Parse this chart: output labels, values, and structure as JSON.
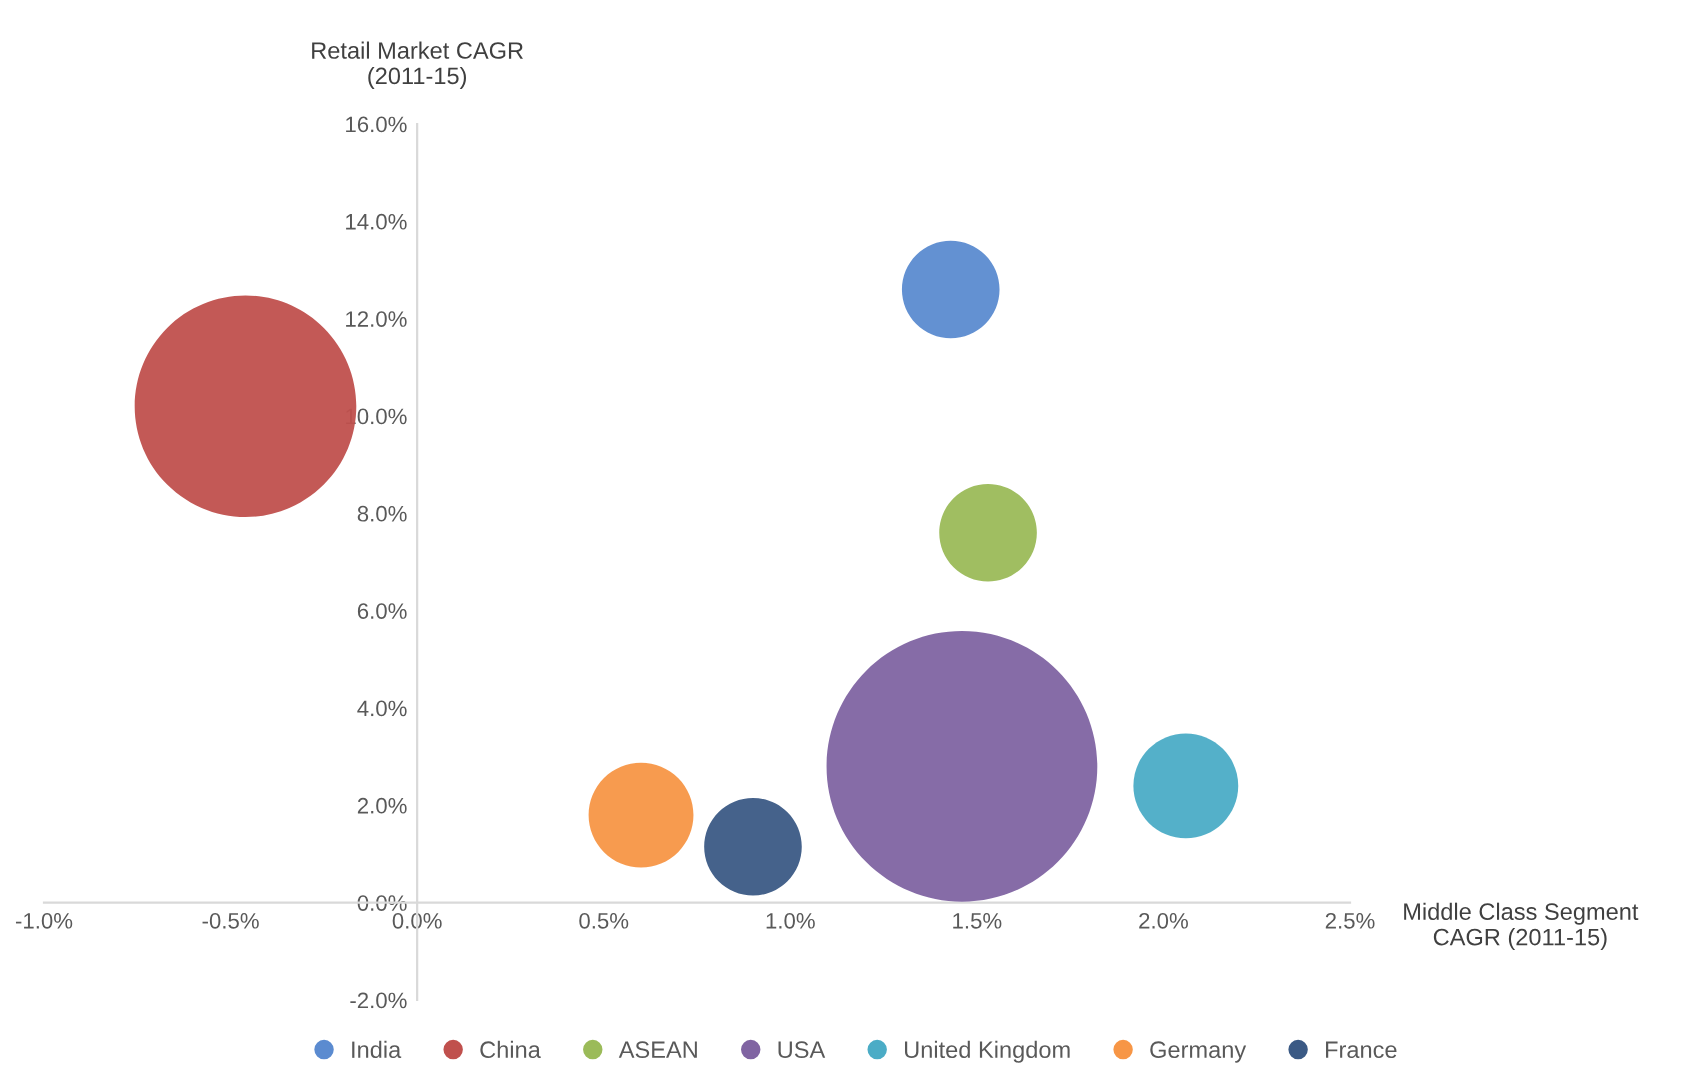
{
  "chart_data": {
    "type": "bubble",
    "xlabel": "Middle Class Segment\nCAGR (2011-15)",
    "ylabel": "Retail Market CAGR\n(2011-15)",
    "xlim": [
      -1.0,
      2.5
    ],
    "ylim": [
      -2.0,
      16.0
    ],
    "xticks": [
      {
        "value": -1.0,
        "label": "-1.0%"
      },
      {
        "value": -0.5,
        "label": "-0.5%"
      },
      {
        "value": 0.0,
        "label": "0.0%"
      },
      {
        "value": 0.5,
        "label": "0.5%"
      },
      {
        "value": 1.0,
        "label": "1.0%"
      },
      {
        "value": 1.5,
        "label": "1.5%"
      },
      {
        "value": 2.0,
        "label": "2.0%"
      },
      {
        "value": 2.5,
        "label": "2.5%"
      }
    ],
    "yticks": [
      {
        "value": -2.0,
        "label": "-2.0%"
      },
      {
        "value": 0.0,
        "label": "0.0%"
      },
      {
        "value": 2.0,
        "label": "2.0%"
      },
      {
        "value": 4.0,
        "label": "4.0%"
      },
      {
        "value": 6.0,
        "label": "6.0%"
      },
      {
        "value": 8.0,
        "label": "8.0%"
      },
      {
        "value": 10.0,
        "label": "10.0%"
      },
      {
        "value": 12.0,
        "label": "12.0%"
      },
      {
        "value": 14.0,
        "label": "14.0%"
      },
      {
        "value": 16.0,
        "label": "16.0%"
      }
    ],
    "grid": false,
    "legend": "bottom",
    "series": [
      {
        "name": "India",
        "color": "#5b8bd0",
        "x": [
          1.43
        ],
        "values": [
          12.6
        ],
        "sizes": [
          0.13
        ]
      },
      {
        "name": "China",
        "color": "#c0504d",
        "x": [
          -0.46
        ],
        "values": [
          10.2
        ],
        "sizes": [
          0.67
        ]
      },
      {
        "name": "ASEAN",
        "color": "#9bbb59",
        "x": [
          1.53
        ],
        "values": [
          7.6
        ],
        "sizes": [
          0.13
        ]
      },
      {
        "name": "USA",
        "color": "#8064a2",
        "x": [
          1.46
        ],
        "values": [
          2.8
        ],
        "sizes": [
          1
        ]
      },
      {
        "name": "United Kingdom",
        "color": "#4bacc6",
        "x": [
          2.06
        ],
        "values": [
          2.4
        ],
        "sizes": [
          0.15
        ]
      },
      {
        "name": "Germany",
        "color": "#f79646",
        "x": [
          0.6
        ],
        "values": [
          1.8
        ],
        "sizes": [
          0.15
        ]
      },
      {
        "name": "France",
        "color": "#3b5a85",
        "x": [
          0.9
        ],
        "values": [
          1.15
        ],
        "sizes": [
          0.13
        ]
      }
    ]
  }
}
